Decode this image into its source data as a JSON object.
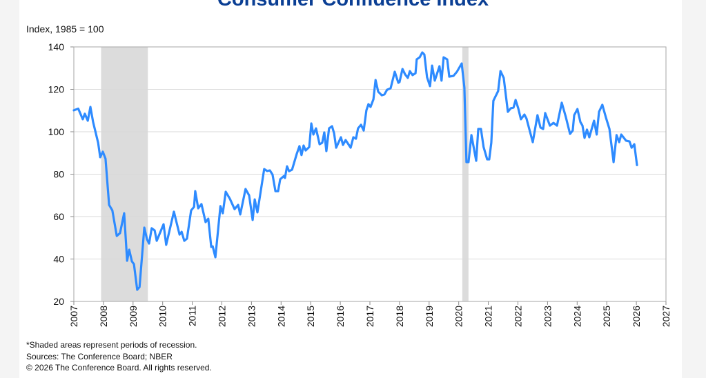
{
  "chart_data": {
    "type": "line",
    "title": "Consumer Confidence Index",
    "ylabel": "Index, 1985 = 100",
    "xlabel": "",
    "xlim": [
      2007,
      2027
    ],
    "ylim": [
      20,
      140
    ],
    "yticks": [
      20,
      40,
      60,
      80,
      100,
      120,
      140
    ],
    "xticks": [
      2007,
      2008,
      2009,
      2010,
      2011,
      2012,
      2013,
      2014,
      2015,
      2016,
      2017,
      2018,
      2019,
      2020,
      2021,
      2022,
      2023,
      2024,
      2025,
      2026,
      2027
    ],
    "grid": "horizontal",
    "line_color": "#2e8bff",
    "recession_color": "#dcdcdc",
    "recessions": [
      [
        "2007-12",
        "2009-06"
      ],
      [
        "2020-02",
        "2020-04"
      ]
    ],
    "recession_years": [
      [
        2007.92,
        2009.5
      ],
      [
        2020.12,
        2020.33
      ]
    ],
    "series": [
      {
        "points": [
          [
            2007.0,
            110.1
          ],
          [
            2007.15,
            110.9
          ],
          [
            2007.3,
            105.9
          ],
          [
            2007.37,
            108.5
          ],
          [
            2007.47,
            105.2
          ],
          [
            2007.56,
            111.7
          ],
          [
            2007.65,
            104.6
          ],
          [
            2007.82,
            94.8
          ],
          [
            2007.89,
            88.0
          ],
          [
            2007.98,
            90.6
          ],
          [
            2008.07,
            87.3
          ],
          [
            2008.19,
            65.5
          ],
          [
            2008.3,
            62.9
          ],
          [
            2008.45,
            50.9
          ],
          [
            2008.56,
            52.2
          ],
          [
            2008.7,
            61.6
          ],
          [
            2008.8,
            39.2
          ],
          [
            2008.87,
            44.4
          ],
          [
            2008.96,
            38.9
          ],
          [
            2009.03,
            37.6
          ],
          [
            2009.14,
            25.5
          ],
          [
            2009.22,
            26.8
          ],
          [
            2009.38,
            54.8
          ],
          [
            2009.47,
            49.3
          ],
          [
            2009.54,
            47.3
          ],
          [
            2009.63,
            54.5
          ],
          [
            2009.73,
            53.5
          ],
          [
            2009.8,
            48.6
          ],
          [
            2010.03,
            56.4
          ],
          [
            2010.12,
            46.7
          ],
          [
            2010.38,
            62.3
          ],
          [
            2010.57,
            51.5
          ],
          [
            2010.64,
            52.8
          ],
          [
            2010.73,
            48.6
          ],
          [
            2010.82,
            49.6
          ],
          [
            2010.96,
            62.9
          ],
          [
            2011.06,
            64.6
          ],
          [
            2011.1,
            72.0
          ],
          [
            2011.2,
            63.9
          ],
          [
            2011.31,
            65.9
          ],
          [
            2011.45,
            57.4
          ],
          [
            2011.54,
            59.0
          ],
          [
            2011.64,
            45.7
          ],
          [
            2011.69,
            46.0
          ],
          [
            2011.78,
            40.8
          ],
          [
            2011.95,
            64.9
          ],
          [
            2012.03,
            61.6
          ],
          [
            2012.13,
            71.7
          ],
          [
            2012.27,
            68.4
          ],
          [
            2012.43,
            63.5
          ],
          [
            2012.55,
            65.5
          ],
          [
            2012.62,
            61.0
          ],
          [
            2012.8,
            73.0
          ],
          [
            2012.92,
            70.0
          ],
          [
            2013.04,
            58.4
          ],
          [
            2013.11,
            68.1
          ],
          [
            2013.2,
            62.0
          ],
          [
            2013.43,
            82.4
          ],
          [
            2013.53,
            81.5
          ],
          [
            2013.62,
            81.8
          ],
          [
            2013.71,
            79.8
          ],
          [
            2013.81,
            72.0
          ],
          [
            2013.9,
            72.0
          ],
          [
            2013.97,
            77.6
          ],
          [
            2014.09,
            79.1
          ],
          [
            2014.13,
            78.2
          ],
          [
            2014.2,
            83.7
          ],
          [
            2014.27,
            81.4
          ],
          [
            2014.37,
            82.1
          ],
          [
            2014.53,
            89.6
          ],
          [
            2014.62,
            93.2
          ],
          [
            2014.69,
            89.0
          ],
          [
            2014.76,
            93.5
          ],
          [
            2014.83,
            91.2
          ],
          [
            2014.95,
            92.8
          ],
          [
            2015.02,
            103.9
          ],
          [
            2015.09,
            98.7
          ],
          [
            2015.18,
            101.6
          ],
          [
            2015.3,
            94.1
          ],
          [
            2015.39,
            94.8
          ],
          [
            2015.46,
            99.7
          ],
          [
            2015.53,
            90.9
          ],
          [
            2015.62,
            101.6
          ],
          [
            2015.72,
            102.6
          ],
          [
            2015.79,
            99.3
          ],
          [
            2015.86,
            92.5
          ],
          [
            2016.02,
            97.4
          ],
          [
            2016.09,
            93.8
          ],
          [
            2016.18,
            96.1
          ],
          [
            2016.35,
            92.5
          ],
          [
            2016.44,
            97.4
          ],
          [
            2016.53,
            96.7
          ],
          [
            2016.6,
            101.6
          ],
          [
            2016.7,
            103.3
          ],
          [
            2016.79,
            100.6
          ],
          [
            2016.88,
            110.1
          ],
          [
            2016.95,
            113.0
          ],
          [
            2017.02,
            111.7
          ],
          [
            2017.12,
            115.3
          ],
          [
            2017.19,
            124.4
          ],
          [
            2017.28,
            118.9
          ],
          [
            2017.4,
            117.2
          ],
          [
            2017.49,
            117.6
          ],
          [
            2017.58,
            119.8
          ],
          [
            2017.7,
            120.5
          ],
          [
            2017.84,
            128.3
          ],
          [
            2017.96,
            123.1
          ],
          [
            2018.0,
            123.4
          ],
          [
            2018.1,
            129.6
          ],
          [
            2018.19,
            127.0
          ],
          [
            2018.28,
            125.4
          ],
          [
            2018.35,
            128.6
          ],
          [
            2018.44,
            126.7
          ],
          [
            2018.54,
            127.6
          ],
          [
            2018.58,
            134.1
          ],
          [
            2018.68,
            135.1
          ],
          [
            2018.77,
            137.4
          ],
          [
            2018.84,
            136.4
          ],
          [
            2018.93,
            125.7
          ],
          [
            2019.03,
            121.5
          ],
          [
            2019.1,
            131.2
          ],
          [
            2019.19,
            124.1
          ],
          [
            2019.35,
            130.9
          ],
          [
            2019.42,
            124.1
          ],
          [
            2019.49,
            135.1
          ],
          [
            2019.61,
            134.1
          ],
          [
            2019.68,
            126.0
          ],
          [
            2019.82,
            126.3
          ],
          [
            2019.94,
            128.3
          ],
          [
            2020.1,
            132.2
          ],
          [
            2020.19,
            120.8
          ],
          [
            2020.26,
            85.7
          ],
          [
            2020.33,
            85.7
          ],
          [
            2020.43,
            98.4
          ],
          [
            2020.59,
            86.3
          ],
          [
            2020.66,
            101.3
          ],
          [
            2020.75,
            101.3
          ],
          [
            2020.84,
            92.8
          ],
          [
            2020.96,
            87.0
          ],
          [
            2021.03,
            87.0
          ],
          [
            2021.1,
            94.8
          ],
          [
            2021.17,
            114.6
          ],
          [
            2021.33,
            119.2
          ],
          [
            2021.41,
            128.6
          ],
          [
            2021.52,
            125.4
          ],
          [
            2021.66,
            109.4
          ],
          [
            2021.76,
            111.1
          ],
          [
            2021.85,
            111.4
          ],
          [
            2021.92,
            115.0
          ],
          [
            2022.01,
            111.1
          ],
          [
            2022.1,
            105.9
          ],
          [
            2022.22,
            108.1
          ],
          [
            2022.29,
            106.2
          ],
          [
            2022.5,
            95.1
          ],
          [
            2022.66,
            107.8
          ],
          [
            2022.76,
            102.0
          ],
          [
            2022.85,
            101.3
          ],
          [
            2022.92,
            108.8
          ],
          [
            2023.08,
            102.9
          ],
          [
            2023.2,
            104.2
          ],
          [
            2023.32,
            102.9
          ],
          [
            2023.48,
            113.7
          ],
          [
            2023.62,
            106.8
          ],
          [
            2023.76,
            99.0
          ],
          [
            2023.85,
            100.6
          ],
          [
            2023.9,
            107.8
          ],
          [
            2024.01,
            110.7
          ],
          [
            2024.11,
            104.6
          ],
          [
            2024.18,
            102.9
          ],
          [
            2024.25,
            97.1
          ],
          [
            2024.33,
            101.0
          ],
          [
            2024.41,
            97.4
          ],
          [
            2024.57,
            105.2
          ],
          [
            2024.66,
            98.7
          ],
          [
            2024.74,
            109.4
          ],
          [
            2024.85,
            112.7
          ],
          [
            2024.97,
            106.8
          ],
          [
            2025.09,
            101.3
          ],
          [
            2025.23,
            85.7
          ],
          [
            2025.33,
            98.4
          ],
          [
            2025.42,
            95.1
          ],
          [
            2025.49,
            98.7
          ],
          [
            2025.65,
            95.8
          ],
          [
            2025.77,
            95.4
          ],
          [
            2025.84,
            92.5
          ],
          [
            2025.93,
            94.1
          ],
          [
            2026.02,
            84.3
          ]
        ]
      }
    ],
    "footnotes": [
      "*Shaded areas represent periods of recession.",
      "Sources: The Conference Board;  NBER",
      "© 2026 The Conference Board. All rights reserved."
    ]
  }
}
